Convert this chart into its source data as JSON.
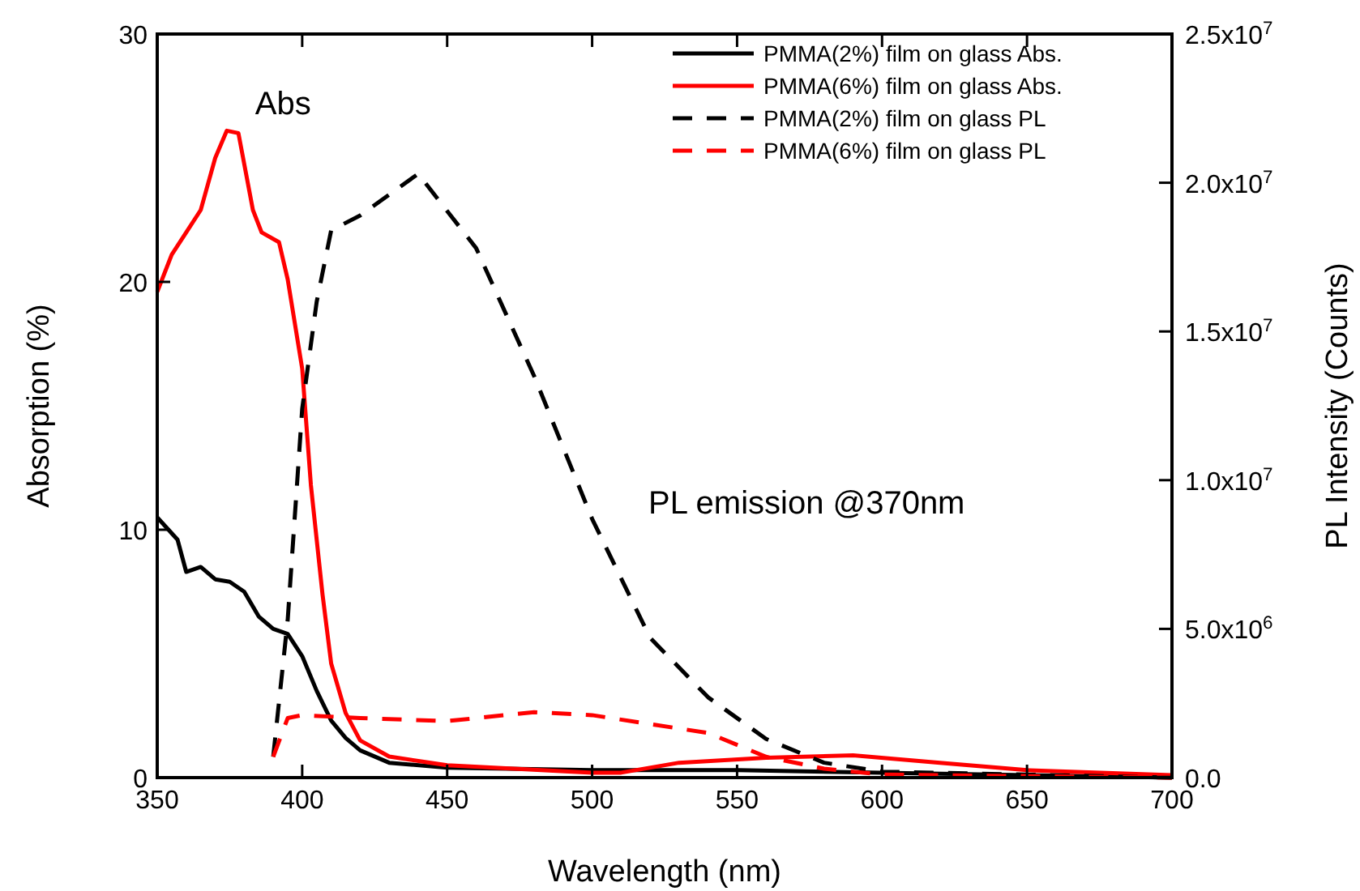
{
  "chart_data": {
    "type": "line",
    "xlabel": "Wavelength (nm)",
    "ylabel": "Absorption (%)",
    "y2label": "PL Intensity (Counts)",
    "xlim": [
      350,
      700
    ],
    "xticks": [
      350,
      400,
      450,
      500,
      550,
      600,
      650,
      700
    ],
    "ylim": [
      0,
      30
    ],
    "yticks": [
      0,
      10,
      20,
      30
    ],
    "y2lim": [
      0,
      25000000
    ],
    "y2ticks": [
      {
        "value": 0,
        "label": "0.0"
      },
      {
        "value": 5000000,
        "label": "5.0x10$^{6}$"
      },
      {
        "value": 10000000,
        "label": "1.0x10$^{7}$"
      },
      {
        "value": 15000000,
        "label": "1.5x10$^{7}$"
      },
      {
        "value": 20000000,
        "label": "2.0x10$^{7}$"
      },
      {
        "value": 25000000,
        "label": "2.5x10$^{7}$"
      }
    ],
    "legend": "top right",
    "grid": false,
    "annotations": [
      "Abs",
      "PL emission @370nm"
    ],
    "series": [
      {
        "name": "PMMA(2%) film on glass Abs.",
        "color": "#000000",
        "line_style": "solid",
        "x": [
          350,
          357,
          360,
          365,
          370,
          375,
          380,
          385,
          390,
          395,
          400,
          405,
          410,
          415,
          420,
          430,
          450,
          500,
          550,
          600,
          650,
          700
        ],
        "values": [
          10.5,
          9.6,
          8.3,
          8.5,
          8.0,
          7.9,
          7.5,
          6.5,
          6.0,
          5.8,
          4.9,
          3.5,
          2.3,
          1.6,
          1.1,
          0.6,
          0.4,
          0.3,
          0.3,
          0.2,
          0.1,
          0.0
        ]
      },
      {
        "name": "PMMA(6%) film on glass Abs.",
        "color": "#ff0000",
        "line_style": "solid",
        "x": [
          350,
          355,
          360,
          365,
          370,
          374,
          378,
          383,
          386,
          392,
          395,
          400,
          403,
          407,
          410,
          415,
          420,
          430,
          450,
          500,
          510,
          530,
          560,
          590,
          620,
          650,
          700
        ],
        "values": [
          19.6,
          21.1,
          22.0,
          22.9,
          25.0,
          26.1,
          26.0,
          22.9,
          22.0,
          21.6,
          20.1,
          16.5,
          11.8,
          7.4,
          4.6,
          2.6,
          1.5,
          0.85,
          0.5,
          0.2,
          0.2,
          0.6,
          0.8,
          0.9,
          0.6,
          0.3,
          0.1
        ]
      },
      {
        "name": "PMMA(2%) film on glass PL",
        "color": "#000000",
        "line_style": "dashed",
        "axis": "y2",
        "x": [
          390,
          395,
          400,
          405,
          410,
          420,
          440,
          460,
          480,
          500,
          520,
          540,
          560,
          580,
          600,
          650,
          700
        ],
        "values": [
          700000,
          5300000,
          12400000,
          16000000,
          18400000,
          18900000,
          20300000,
          17800000,
          13500000,
          8700000,
          4700000,
          2700000,
          1300000,
          500000,
          200000,
          100000,
          0
        ]
      },
      {
        "name": "PMMA(6%) film on glass PL",
        "color": "#ff0000",
        "line_style": "dashed",
        "axis": "y2",
        "x": [
          390,
          395,
          400,
          420,
          450,
          480,
          500,
          520,
          540,
          560,
          580,
          600,
          700
        ],
        "values": [
          700000,
          2000000,
          2100000,
          2000000,
          1900000,
          2200000,
          2100000,
          1800000,
          1500000,
          700000,
          300000,
          100000,
          0
        ]
      }
    ]
  }
}
